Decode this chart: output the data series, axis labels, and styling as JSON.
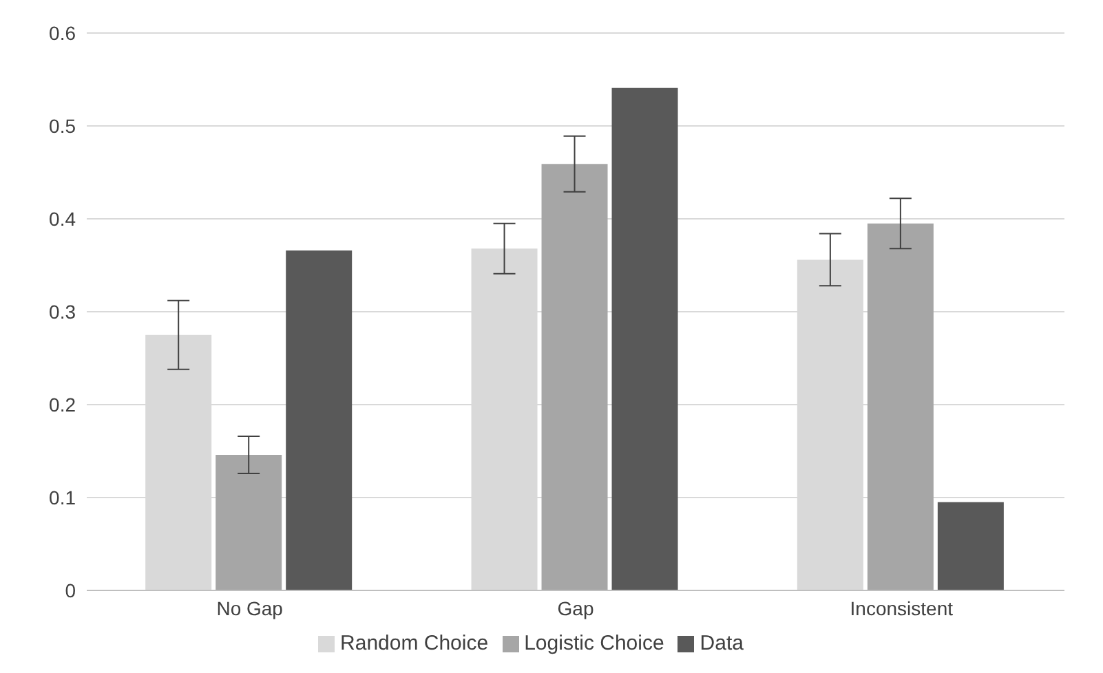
{
  "chart_data": {
    "type": "bar",
    "categories": [
      "No Gap",
      "Gap",
      "Inconsistent"
    ],
    "series": [
      {
        "name": "Random Choice",
        "color": "#d9d9d9",
        "values": [
          0.275,
          0.368,
          0.356
        ],
        "errors": [
          0.037,
          0.027,
          0.028
        ]
      },
      {
        "name": "Logistic Choice",
        "color": "#a6a6a6",
        "values": [
          0.146,
          0.459,
          0.395
        ],
        "errors": [
          0.02,
          0.03,
          0.027
        ]
      },
      {
        "name": "Data",
        "color": "#595959",
        "values": [
          0.366,
          0.541,
          0.095
        ]
      }
    ],
    "ylim": [
      0,
      0.6
    ],
    "yticks": [
      0,
      0.1,
      0.2,
      0.3,
      0.4,
      0.5,
      0.6
    ],
    "grid": "y",
    "legend": "bottom"
  }
}
